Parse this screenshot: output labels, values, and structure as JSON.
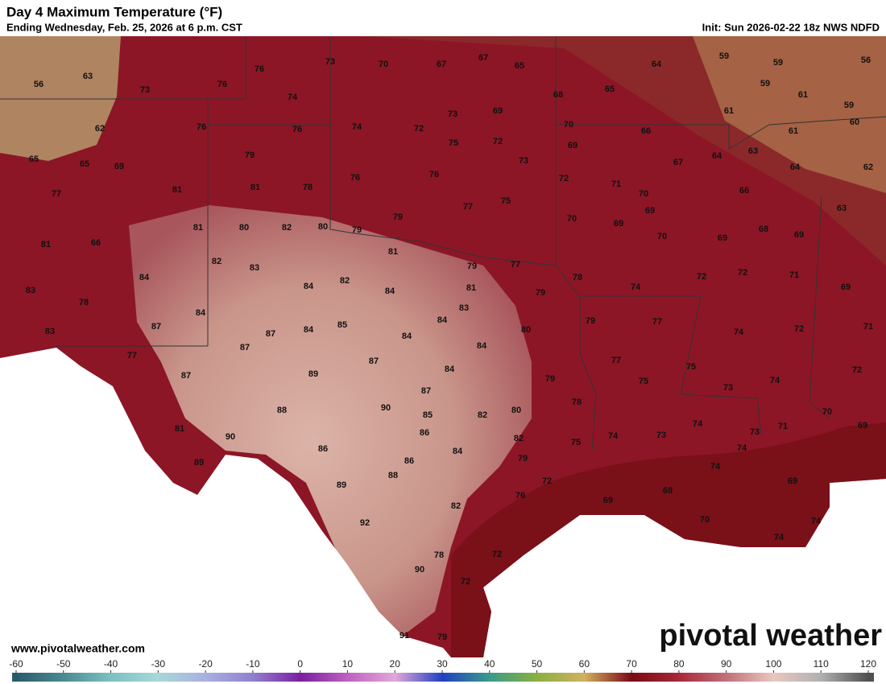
{
  "header": {
    "title": "Day 4 Maximum Temperature (°F)",
    "subtitle": "Ending Wednesday, Feb. 25, 2026 at 6 p.m. CST",
    "init": "Init: Sun 2026-02-22 18z NWS NDFD"
  },
  "watermark": "www.pivotalweather.com",
  "logo": "pivotal weather",
  "temperatures": [
    56,
    63,
    73,
    76,
    76,
    73,
    70,
    67,
    67,
    65,
    64,
    59,
    59,
    56,
    74,
    68,
    65,
    59,
    61,
    59,
    62,
    76,
    76,
    74,
    72,
    73,
    69,
    70,
    66,
    61,
    61,
    60,
    65,
    65,
    69,
    79,
    75,
    72,
    69,
    73,
    67,
    64,
    63,
    64,
    62,
    77,
    81,
    81,
    78,
    76,
    76,
    72,
    71,
    70,
    66,
    63,
    81,
    66,
    81,
    80,
    82,
    80,
    79,
    79,
    77,
    75,
    70,
    69,
    69,
    70,
    69,
    68,
    69,
    81,
    79,
    77,
    82,
    83,
    84,
    78,
    74,
    72,
    72,
    71,
    69,
    83,
    78,
    84,
    82,
    84,
    81,
    79,
    83,
    84,
    87,
    83,
    87,
    84,
    85,
    84,
    84,
    80,
    79,
    77,
    74,
    72,
    71,
    77,
    87,
    84,
    87,
    77,
    75,
    87,
    89,
    84,
    79,
    75,
    73,
    74,
    72,
    87,
    78,
    88,
    90,
    85,
    82,
    80,
    70,
    69,
    81,
    90,
    86,
    82,
    74,
    73,
    71,
    74,
    73,
    75,
    86,
    84,
    86,
    79,
    74,
    89,
    88,
    74,
    72,
    69,
    89,
    76,
    68,
    69,
    82,
    92,
    70,
    74,
    74,
    72,
    78,
    90,
    72,
    91,
    79
  ],
  "colorbar": {
    "ticks": [
      -60,
      -50,
      -40,
      -30,
      -20,
      -10,
      0,
      10,
      20,
      30,
      40,
      50,
      60,
      70,
      80,
      90,
      100,
      110,
      120
    ]
  }
}
